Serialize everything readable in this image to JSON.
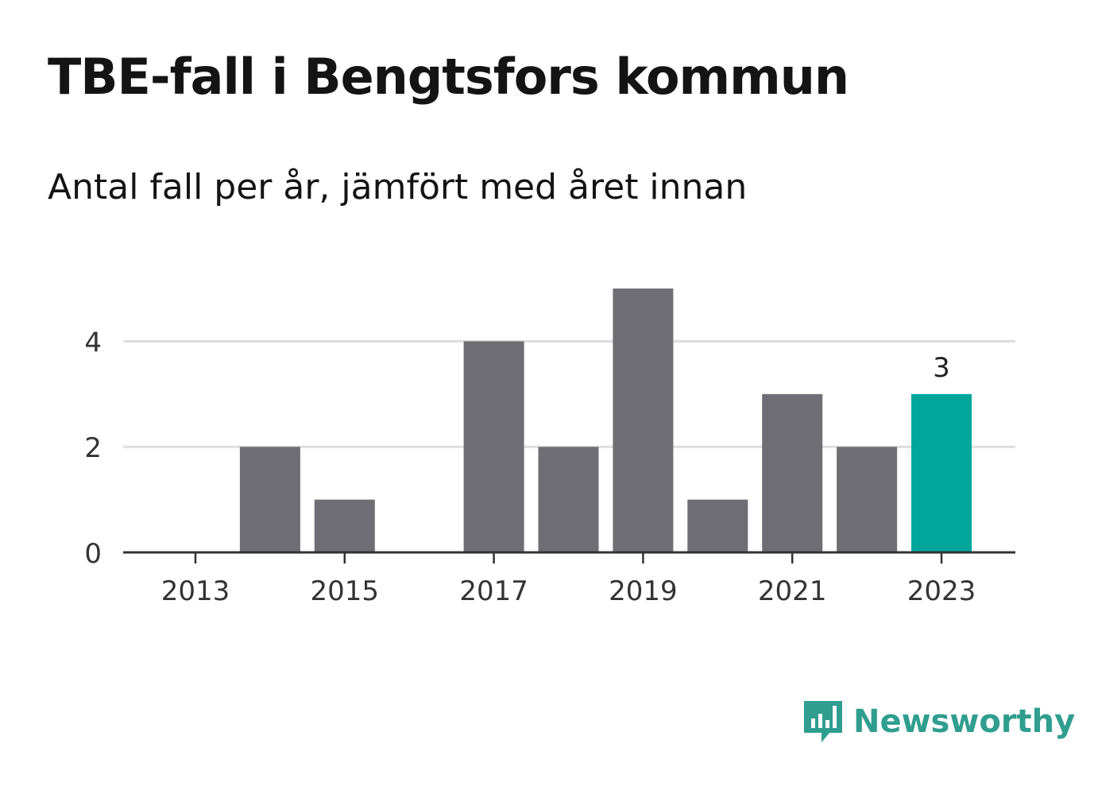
{
  "header": {
    "title": "TBE-fall i Bengtsfors kommun",
    "subtitle": "Antal fall per år, jämfört med året innan"
  },
  "brand": {
    "name": "Newsworthy",
    "icon": "newsworthy-logo-icon",
    "color": "#2f9e8f"
  },
  "colors": {
    "bar": "#6f6e75",
    "highlight": "#00a69a",
    "grid": "#dddddd",
    "axis": "#333333",
    "tick_text": "#333333"
  },
  "chart_data": {
    "type": "bar",
    "title": "TBE-fall i Bengtsfors kommun",
    "subtitle": "Antal fall per år, jämfört med året innan",
    "categories": [
      "2013",
      "2014",
      "2015",
      "2016",
      "2017",
      "2018",
      "2019",
      "2020",
      "2021",
      "2022",
      "2023"
    ],
    "values": [
      0,
      2,
      1,
      0,
      4,
      2,
      5,
      1,
      3,
      2,
      3
    ],
    "highlight_index": 10,
    "data_labels": [
      {
        "index": 10,
        "text": "3"
      }
    ],
    "x_tick_labels": [
      "2013",
      "2015",
      "2017",
      "2019",
      "2021",
      "2023"
    ],
    "y_ticks": [
      0,
      2,
      4
    ],
    "ylim": [
      0,
      5
    ],
    "xlabel": "",
    "ylabel": "",
    "grid": true,
    "legend": "none"
  }
}
